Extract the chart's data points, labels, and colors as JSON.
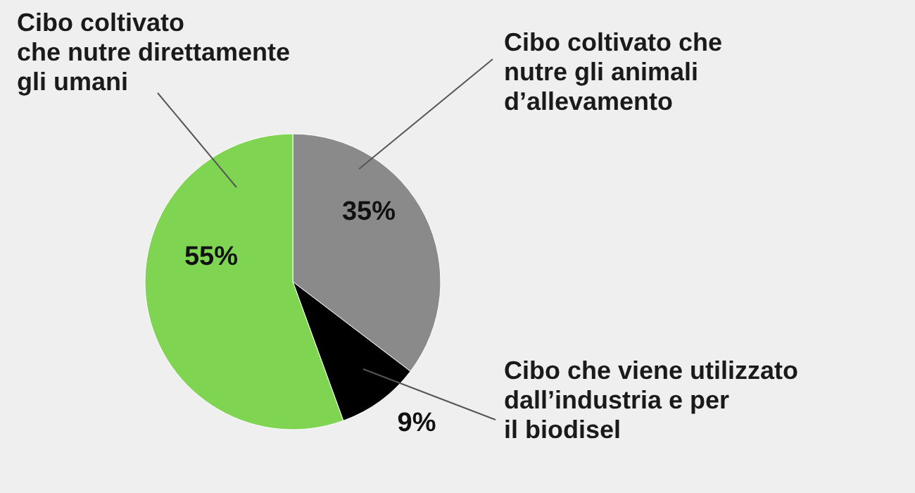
{
  "chart_data": {
    "type": "pie",
    "categories": [
      "Cibo coltivato che\nnutre gli animali\nd’allevamento",
      "Cibo che viene utilizzato\ndall’industria e per\nil biodisel",
      "Cibo coltivato\nche nutre direttamente\ngli umani"
    ],
    "values": [
      35,
      9,
      55
    ],
    "colors": [
      "#8a8a8a",
      "#000000",
      "#7fd552"
    ],
    "value_labels": [
      "35%",
      "9%",
      "55%"
    ]
  }
}
